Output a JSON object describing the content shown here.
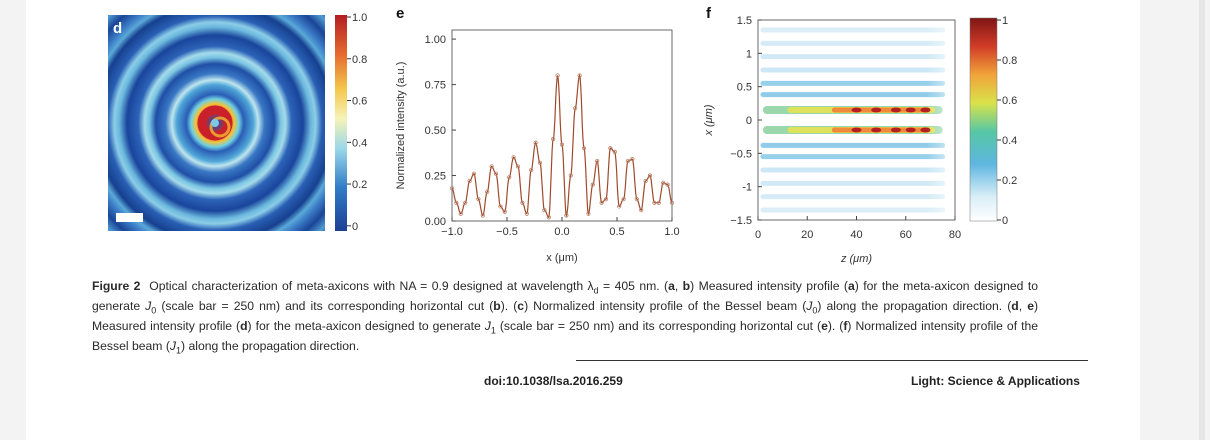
{
  "panels": {
    "d": {
      "letter": "d",
      "colorbar_ticks": [
        "1.0",
        "0.8",
        "0.6",
        "0.4",
        "0.2",
        "0"
      ]
    },
    "e": {
      "letter": "e",
      "ylabel": "Normalized intensity (a.u.)",
      "xlabel": "x (μm)",
      "xticks": [
        "−1.0",
        "−0.5",
        "0.0",
        "0.5",
        "1.0"
      ],
      "yticks": [
        "0.00",
        "0.25",
        "0.50",
        "0.75",
        "1.00"
      ]
    },
    "f": {
      "letter": "f",
      "ylabel": "x (μm)",
      "xlabel": "z (μm)",
      "xticks": [
        "0",
        "20",
        "40",
        "60",
        "80"
      ],
      "yticks": [
        "1.5",
        "1",
        "0.5",
        "0",
        "−0.5",
        "-1",
        "−1.5"
      ],
      "colorbar_ticks": [
        "1",
        "0.8",
        "0.6",
        "0.4",
        "0.2",
        "0"
      ]
    }
  },
  "chart_data": [
    {
      "type": "line",
      "panel": "e",
      "xlabel": "x (μm)",
      "ylabel": "Normalized intensity (a.u.)",
      "xlim": [
        -1.0,
        1.0
      ],
      "ylim": [
        0.0,
        1.05
      ],
      "series": [
        {
          "x": [
            -1.0,
            -0.96,
            -0.92,
            -0.88,
            -0.84,
            -0.8,
            -0.76,
            -0.72,
            -0.68,
            -0.64,
            -0.6,
            -0.56,
            -0.52,
            -0.48,
            -0.44,
            -0.4,
            -0.36,
            -0.32,
            -0.28,
            -0.24,
            -0.2,
            -0.16,
            -0.12,
            -0.08,
            -0.04,
            0.0,
            0.04,
            0.08,
            0.12,
            0.16,
            0.2,
            0.24,
            0.28,
            0.32,
            0.36,
            0.4,
            0.44,
            0.48,
            0.52,
            0.56,
            0.6,
            0.64,
            0.68,
            0.72,
            0.76,
            0.8,
            0.84,
            0.88,
            0.92,
            0.96,
            1.0
          ],
          "y": [
            0.18,
            0.1,
            0.04,
            0.1,
            0.22,
            0.26,
            0.12,
            0.03,
            0.16,
            0.3,
            0.26,
            0.08,
            0.05,
            0.24,
            0.35,
            0.3,
            0.1,
            0.04,
            0.28,
            0.43,
            0.32,
            0.06,
            0.02,
            0.45,
            0.8,
            0.42,
            0.03,
            0.25,
            0.62,
            0.8,
            0.4,
            0.04,
            0.2,
            0.33,
            0.1,
            0.12,
            0.4,
            0.38,
            0.08,
            0.12,
            0.33,
            0.34,
            0.12,
            0.06,
            0.22,
            0.25,
            0.1,
            0.1,
            0.21,
            0.2,
            0.1
          ]
        }
      ]
    },
    {
      "type": "heatmap",
      "panel": "d",
      "description_value_range": [
        0,
        1.0
      ]
    },
    {
      "type": "heatmap",
      "panel": "f",
      "xlabel": "z (μm)",
      "ylabel": "x (μm)",
      "xlim": [
        0,
        80
      ],
      "ylim": [
        -1.5,
        1.5
      ],
      "colorbar_range": [
        0,
        1
      ]
    }
  ],
  "caption": {
    "figure_label": "Figure 2",
    "line1": "Optical characterization of meta-axicons with NA = 0.9 designed at wavelength λ",
    "lambda_sub": "d",
    "line1b": " = 405 nm. (",
    "a": "a",
    "b": "b",
    "text_full_1": ") Measured intensity profile (",
    "text_full_2": ") for the meta-axicon designed to generate ",
    "J0": "J",
    "zero": "0",
    "text_full_3": " (scale bar = 250 nm) and its corresponding horizontal cut (",
    "text_full_4": "). (",
    "c": "c",
    "text_full_5": ") Normalized intensity profile of the Bessel beam (",
    "text_full_6": ") along the propagation direction. (",
    "d": "d",
    "e": "e",
    "text_full_7": ") Measured intensity profile (",
    "text_full_8": ") for the meta-axicon designed to generate ",
    "one": "1",
    "text_full_9": " (scale bar = 250 nm) and its corresponding horizontal cut (",
    "text_full_10": "). (",
    "f": "f",
    "text_full_11": ") Normalized intensity profile of the Bessel beam (",
    "text_full_12": ") along the propagation direction."
  },
  "footer": {
    "doi": "doi:10.1038/lsa.2016.259",
    "journal": "Light: Science & Applications"
  }
}
